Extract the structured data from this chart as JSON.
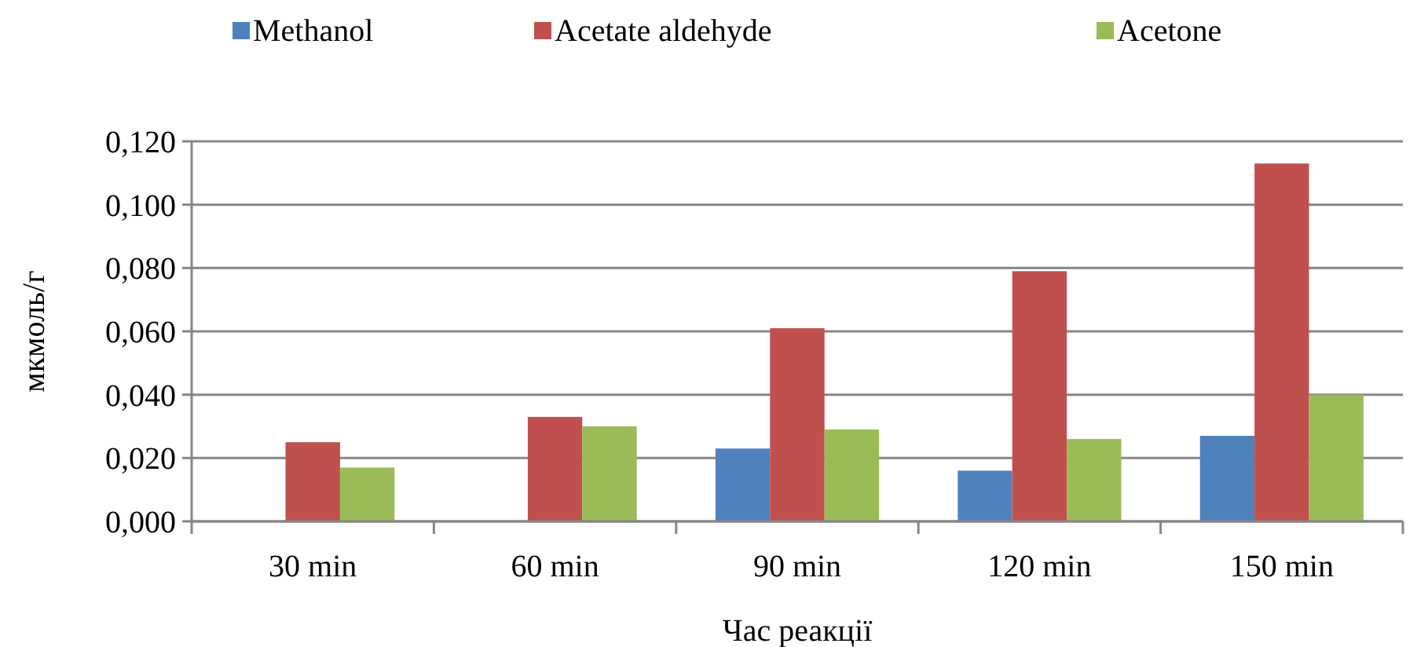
{
  "chart_data": {
    "type": "bar",
    "xlabel": "Час реакції",
    "ylabel": "мкмоль/г",
    "categories": [
      "30 min",
      "60 min",
      "90 min",
      "120 min",
      "150 min"
    ],
    "series": [
      {
        "name": "Methanol",
        "color": "#4f81bd",
        "values": [
          null,
          null,
          0.023,
          0.016,
          0.027
        ]
      },
      {
        "name": "Acetate aldehyde",
        "color": "#c0504d",
        "values": [
          0.025,
          0.033,
          0.061,
          0.079,
          0.113
        ]
      },
      {
        "name": "Acetone",
        "color": "#9bbb59",
        "values": [
          0.017,
          0.03,
          0.029,
          0.026,
          0.04
        ]
      }
    ],
    "ylim": [
      0,
      0.12
    ],
    "yticks": [
      {
        "value": 0,
        "label": "0,000"
      },
      {
        "value": 0.02,
        "label": "0,020"
      },
      {
        "value": 0.04,
        "label": "0,040"
      },
      {
        "value": 0.06,
        "label": "0,060"
      },
      {
        "value": 0.08,
        "label": "0,080"
      },
      {
        "value": 0.1,
        "label": "0,100"
      },
      {
        "value": 0.12,
        "label": "0,120"
      }
    ],
    "grid": "y",
    "legend": "top"
  }
}
